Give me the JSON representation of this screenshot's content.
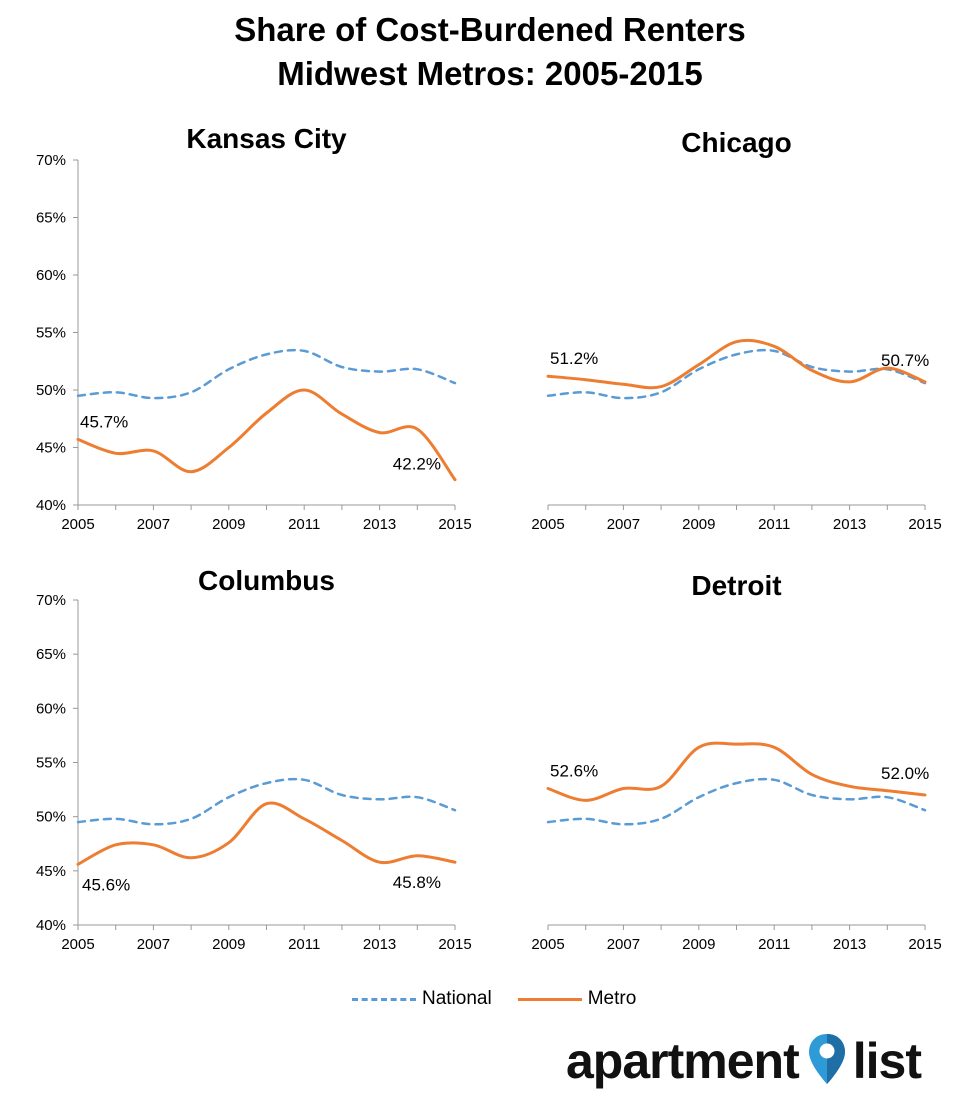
{
  "title_line1": "Share of Cost-Burdened Renters",
  "title_line2": "Midwest Metros: 2005-2015",
  "colors": {
    "national": "#5B9BD5",
    "metro": "#ED7D31",
    "axis": "#999999"
  },
  "legend": [
    {
      "label": "National",
      "style": "dashed",
      "color": "#5B9BD5"
    },
    {
      "label": "Metro",
      "style": "solid",
      "color": "#ED7D31"
    }
  ],
  "logo": {
    "left": "apartment",
    "right": "list",
    "icon": "location-pin-icon"
  },
  "chart_data": [
    {
      "type": "line",
      "title": "Kansas City",
      "x": [
        2005,
        2006,
        2007,
        2008,
        2009,
        2010,
        2011,
        2012,
        2013,
        2014,
        2015
      ],
      "xticks": [
        "2005",
        "2007",
        "2009",
        "2011",
        "2013",
        "2015"
      ],
      "yticks": [
        "40%",
        "45%",
        "50%",
        "55%",
        "60%",
        "65%",
        "70%"
      ],
      "ylim": [
        40,
        70
      ],
      "series": [
        {
          "name": "National",
          "values": [
            49.5,
            49.8,
            49.3,
            49.8,
            51.8,
            53.1,
            53.4,
            52.0,
            51.6,
            51.8,
            50.6
          ]
        },
        {
          "name": "Metro",
          "values": [
            45.7,
            44.5,
            44.7,
            42.9,
            45.0,
            48.0,
            50.0,
            47.9,
            46.3,
            46.6,
            42.2
          ]
        }
      ],
      "annotations": [
        {
          "text": "45.7%",
          "x": 2005,
          "y": 45.7,
          "pos": "above-right"
        },
        {
          "text": "42.2%",
          "x": 2015,
          "y": 42.2,
          "pos": "above-left"
        }
      ]
    },
    {
      "type": "line",
      "title": "Chicago",
      "x": [
        2005,
        2006,
        2007,
        2008,
        2009,
        2010,
        2011,
        2012,
        2013,
        2014,
        2015
      ],
      "xticks": [
        "2005",
        "2007",
        "2009",
        "2011",
        "2013",
        "2015"
      ],
      "yticks": [],
      "ylim": [
        40,
        70
      ],
      "series": [
        {
          "name": "National",
          "values": [
            49.5,
            49.8,
            49.3,
            49.8,
            51.8,
            53.1,
            53.4,
            52.0,
            51.6,
            51.8,
            50.6
          ]
        },
        {
          "name": "Metro",
          "values": [
            51.2,
            50.9,
            50.5,
            50.3,
            52.2,
            54.2,
            53.8,
            51.7,
            50.7,
            51.9,
            50.7
          ]
        }
      ],
      "annotations": [
        {
          "text": "51.2%",
          "x": 2005,
          "y": 51.2,
          "pos": "above-right"
        },
        {
          "text": "50.7%",
          "x": 2015,
          "y": 50.7,
          "pos": "above"
        }
      ]
    },
    {
      "type": "line",
      "title": "Columbus",
      "x": [
        2005,
        2006,
        2007,
        2008,
        2009,
        2010,
        2011,
        2012,
        2013,
        2014,
        2015
      ],
      "xticks": [
        "2005",
        "2007",
        "2009",
        "2011",
        "2013",
        "2015"
      ],
      "yticks": [
        "40%",
        "45%",
        "50%",
        "55%",
        "60%",
        "65%",
        "70%"
      ],
      "ylim": [
        40,
        70
      ],
      "series": [
        {
          "name": "National",
          "values": [
            49.5,
            49.8,
            49.3,
            49.8,
            51.8,
            53.1,
            53.4,
            52.0,
            51.6,
            51.8,
            50.6
          ]
        },
        {
          "name": "Metro",
          "values": [
            45.6,
            47.4,
            47.4,
            46.2,
            47.6,
            51.2,
            49.8,
            47.8,
            45.8,
            46.4,
            45.8
          ]
        }
      ],
      "annotations": [
        {
          "text": "45.6%",
          "x": 2005,
          "y": 45.6,
          "pos": "below-right"
        },
        {
          "text": "45.8%",
          "x": 2015,
          "y": 45.8,
          "pos": "below-left"
        }
      ]
    },
    {
      "type": "line",
      "title": "Detroit",
      "x": [
        2005,
        2006,
        2007,
        2008,
        2009,
        2010,
        2011,
        2012,
        2013,
        2014,
        2015
      ],
      "xticks": [
        "2005",
        "2007",
        "2009",
        "2011",
        "2013",
        "2015"
      ],
      "yticks": [],
      "ylim": [
        40,
        70
      ],
      "series": [
        {
          "name": "National",
          "values": [
            49.5,
            49.8,
            49.3,
            49.8,
            51.8,
            53.1,
            53.4,
            52.0,
            51.6,
            51.8,
            50.6
          ]
        },
        {
          "name": "Metro",
          "values": [
            52.6,
            51.5,
            52.6,
            52.8,
            56.4,
            56.7,
            56.4,
            53.9,
            52.8,
            52.4,
            52.0
          ]
        }
      ],
      "annotations": [
        {
          "text": "52.6%",
          "x": 2005,
          "y": 52.6,
          "pos": "above-right"
        },
        {
          "text": "52.0%",
          "x": 2015,
          "y": 52.0,
          "pos": "above"
        }
      ]
    }
  ]
}
